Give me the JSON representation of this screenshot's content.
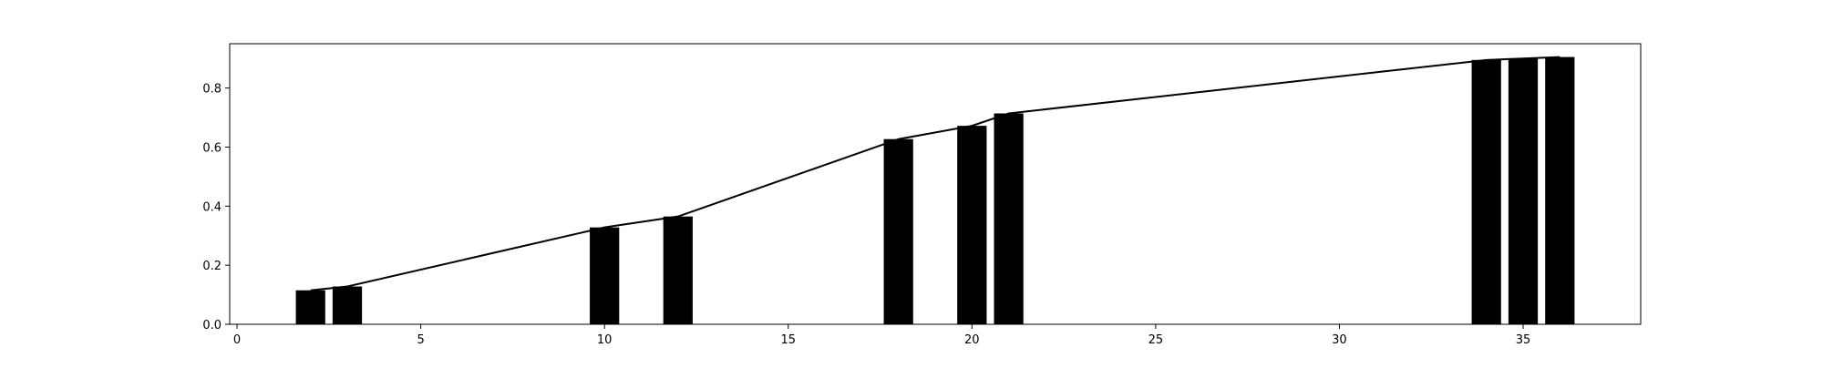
{
  "chart_data": {
    "type": "bar",
    "title": "",
    "xlabel": "",
    "ylabel": "",
    "xlim": [
      -0.2,
      38.2
    ],
    "ylim": [
      0,
      0.95
    ],
    "grid": false,
    "x_ticks": [
      0,
      5,
      10,
      15,
      20,
      25,
      30,
      35
    ],
    "x_tick_labels": [
      "0",
      "5",
      "10",
      "15",
      "20",
      "25",
      "30",
      "35"
    ],
    "y_ticks": [
      0.0,
      0.2,
      0.4,
      0.6,
      0.8
    ],
    "y_tick_labels": [
      "0.0",
      "0.2",
      "0.4",
      "0.6",
      "0.8"
    ],
    "bar_color": "#000000",
    "line_color": "#000000",
    "bars": {
      "x": [
        2,
        3,
        10,
        12,
        18,
        20,
        21,
        34,
        35,
        36
      ],
      "values": [
        0.115,
        0.128,
        0.328,
        0.365,
        0.627,
        0.672,
        0.714,
        0.895,
        0.9,
        0.905
      ],
      "width": 0.8
    },
    "line": {
      "x": [
        2,
        3,
        10,
        12,
        18,
        20,
        21,
        34,
        35,
        36
      ],
      "values": [
        0.115,
        0.128,
        0.328,
        0.365,
        0.627,
        0.672,
        0.714,
        0.895,
        0.9,
        0.905
      ]
    }
  }
}
